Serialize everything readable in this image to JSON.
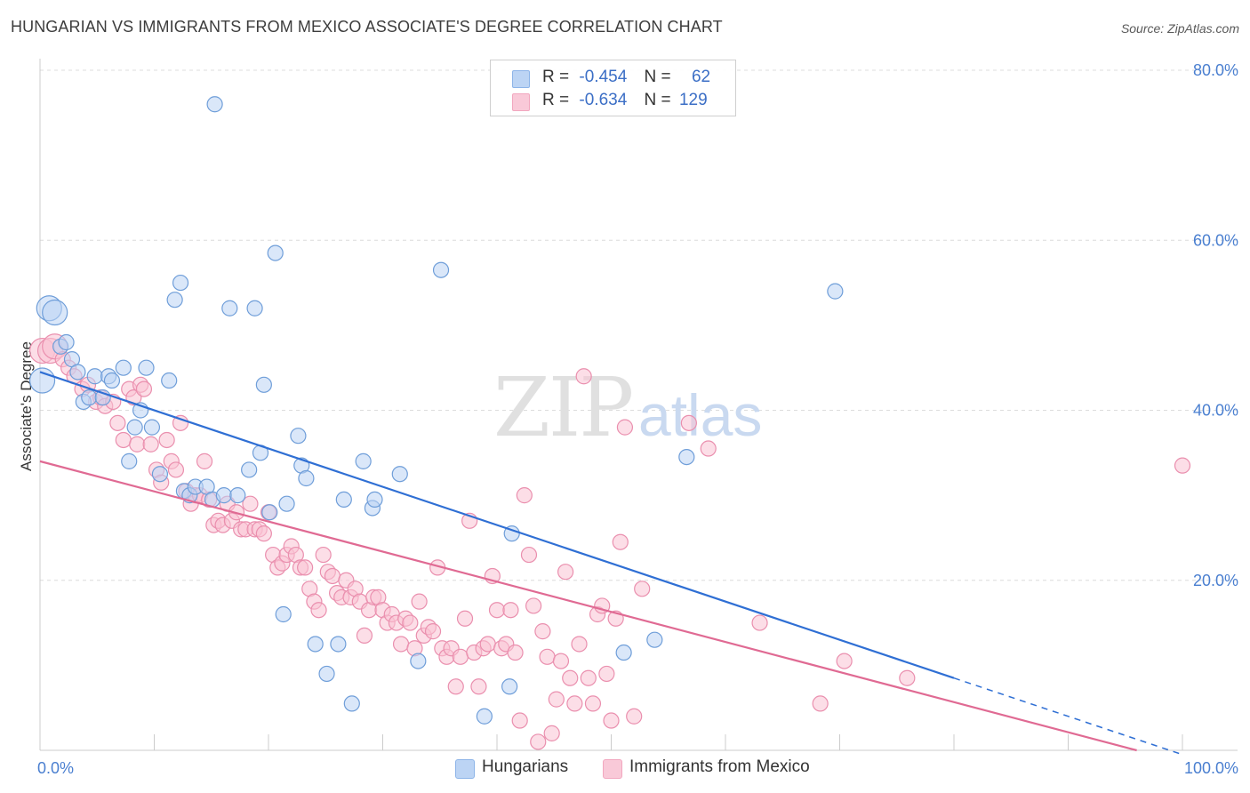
{
  "header": {
    "title": "HUNGARIAN VS IMMIGRANTS FROM MEXICO ASSOCIATE'S DEGREE CORRELATION CHART",
    "source": "Source: ZipAtlas.com"
  },
  "watermark": {
    "zip": "ZIP",
    "atlas": "atlas"
  },
  "legend": {
    "rows": [
      {
        "r_label": "R =",
        "r_value": "-0.454",
        "n_label": "N =",
        "n_value": "62"
      },
      {
        "r_label": "R =",
        "r_value": "-0.634",
        "n_label": "N =",
        "n_value": "129"
      }
    ]
  },
  "bottom_legend": {
    "hungarians": "Hungarians",
    "mexico": "Immigrants from Mexico"
  },
  "chart_data": {
    "type": "scatter",
    "title": "HUNGARIAN VS IMMIGRANTS FROM MEXICO ASSOCIATE'S DEGREE CORRELATION CHART",
    "ylabel": "Associate's Degree",
    "xlabel": "",
    "xlim": [
      0,
      100
    ],
    "ylim": [
      0,
      80
    ],
    "x_tick_labels": [
      "0.0%",
      "100.0%"
    ],
    "y_ticks": [
      20,
      40,
      60,
      80
    ],
    "y_tick_labels": [
      "20.0%",
      "40.0%",
      "60.0%",
      "80.0%"
    ],
    "grid": "horizontal dashed",
    "legend_position": "top-center",
    "colors": {
      "hungarians": "#8db4e8",
      "mexico": "#f2a7bf",
      "hungarians_line": "#2f6fd4",
      "mexico_line": "#e06a93"
    },
    "series": [
      {
        "name": "Hungarians",
        "r": -0.454,
        "n": 62,
        "trend": {
          "x0": 0,
          "y0": 44.5,
          "x1": 80,
          "y1": 8.5,
          "dashed_to_x": 100
        },
        "points": [
          [
            0.2,
            43.5
          ],
          [
            0.8,
            52
          ],
          [
            1.3,
            51.5
          ],
          [
            1.8,
            47.5
          ],
          [
            2.3,
            48
          ],
          [
            2.8,
            46
          ],
          [
            3.3,
            44.5
          ],
          [
            3.8,
            41
          ],
          [
            4.3,
            41.5
          ],
          [
            4.8,
            44
          ],
          [
            5.5,
            41.5
          ],
          [
            6,
            44
          ],
          [
            6.3,
            43.5
          ],
          [
            7.3,
            45
          ],
          [
            7.8,
            34
          ],
          [
            8.3,
            38
          ],
          [
            8.8,
            40
          ],
          [
            9.3,
            45
          ],
          [
            9.8,
            38
          ],
          [
            10.5,
            32.5
          ],
          [
            11.3,
            43.5
          ],
          [
            11.8,
            53
          ],
          [
            12.3,
            55
          ],
          [
            12.6,
            30.5
          ],
          [
            13.1,
            30
          ],
          [
            13.6,
            31
          ],
          [
            14.6,
            31
          ],
          [
            15.1,
            29.5
          ],
          [
            15.3,
            76
          ],
          [
            16.1,
            30
          ],
          [
            16.6,
            52
          ],
          [
            17.3,
            30
          ],
          [
            18.3,
            33
          ],
          [
            18.8,
            52
          ],
          [
            19.3,
            35
          ],
          [
            19.6,
            43
          ],
          [
            20.1,
            28
          ],
          [
            20.6,
            58.5
          ],
          [
            21.3,
            16
          ],
          [
            21.6,
            29
          ],
          [
            22.6,
            37
          ],
          [
            22.9,
            33.5
          ],
          [
            23.3,
            32
          ],
          [
            24.1,
            12.5
          ],
          [
            25.1,
            9
          ],
          [
            26.1,
            12.5
          ],
          [
            26.6,
            29.5
          ],
          [
            27.3,
            5.5
          ],
          [
            28.3,
            34
          ],
          [
            29.1,
            28.5
          ],
          [
            29.3,
            29.5
          ],
          [
            31.5,
            32.5
          ],
          [
            33.1,
            10.5
          ],
          [
            35.1,
            56.5
          ],
          [
            38.9,
            4
          ],
          [
            41.1,
            7.5
          ],
          [
            41.3,
            25.5
          ],
          [
            51.1,
            11.5
          ],
          [
            53.8,
            13
          ],
          [
            56.6,
            34.5
          ],
          [
            69.6,
            54
          ]
        ]
      },
      {
        "name": "Immigrants from Mexico",
        "r": -0.634,
        "n": 129,
        "trend": {
          "x0": 0,
          "y0": 34,
          "x1": 96,
          "y1": 0
        },
        "points": [
          [
            0.2,
            47
          ],
          [
            0.9,
            47
          ],
          [
            1.3,
            47.5
          ],
          [
            2,
            46
          ],
          [
            2.5,
            45
          ],
          [
            3,
            44
          ],
          [
            3.7,
            42.5
          ],
          [
            4.2,
            43
          ],
          [
            4.9,
            41
          ],
          [
            5.3,
            41.5
          ],
          [
            5.7,
            40.5
          ],
          [
            6.4,
            41
          ],
          [
            6.8,
            38.5
          ],
          [
            7.3,
            36.5
          ],
          [
            7.8,
            42.5
          ],
          [
            8.2,
            41.5
          ],
          [
            8.5,
            36
          ],
          [
            8.8,
            43
          ],
          [
            9.1,
            42.5
          ],
          [
            9.7,
            36
          ],
          [
            10.2,
            33
          ],
          [
            10.6,
            31.5
          ],
          [
            11.1,
            36.5
          ],
          [
            11.5,
            34
          ],
          [
            11.9,
            33
          ],
          [
            12.3,
            38.5
          ],
          [
            12.8,
            30.5
          ],
          [
            13.2,
            29
          ],
          [
            13.6,
            30
          ],
          [
            14,
            30
          ],
          [
            14.4,
            34
          ],
          [
            14.8,
            29.5
          ],
          [
            15.2,
            26.5
          ],
          [
            15.6,
            27
          ],
          [
            16,
            26.5
          ],
          [
            16.4,
            29
          ],
          [
            16.8,
            27
          ],
          [
            17.2,
            28
          ],
          [
            17.6,
            26
          ],
          [
            18,
            26
          ],
          [
            18.4,
            29
          ],
          [
            18.8,
            26
          ],
          [
            19.2,
            26
          ],
          [
            19.6,
            25.5
          ],
          [
            20,
            28
          ],
          [
            20.4,
            23
          ],
          [
            20.8,
            21.5
          ],
          [
            21.2,
            22
          ],
          [
            21.6,
            23
          ],
          [
            22,
            24
          ],
          [
            22.4,
            23
          ],
          [
            22.8,
            21.5
          ],
          [
            23.2,
            21.5
          ],
          [
            23.6,
            19
          ],
          [
            24,
            17.5
          ],
          [
            24.4,
            16.5
          ],
          [
            24.8,
            23
          ],
          [
            25.2,
            21
          ],
          [
            25.6,
            20.5
          ],
          [
            26,
            18.5
          ],
          [
            26.4,
            18
          ],
          [
            26.8,
            20
          ],
          [
            27.2,
            18
          ],
          [
            27.6,
            19
          ],
          [
            28,
            17.5
          ],
          [
            28.4,
            13.5
          ],
          [
            28.8,
            16.5
          ],
          [
            29.2,
            18
          ],
          [
            29.6,
            18
          ],
          [
            30,
            16.5
          ],
          [
            30.4,
            15
          ],
          [
            30.8,
            16
          ],
          [
            31.2,
            15
          ],
          [
            31.6,
            12.5
          ],
          [
            32,
            15.5
          ],
          [
            32.4,
            15
          ],
          [
            32.8,
            12
          ],
          [
            33.2,
            17.5
          ],
          [
            33.6,
            13.5
          ],
          [
            34,
            14.5
          ],
          [
            34.4,
            14
          ],
          [
            34.8,
            21.5
          ],
          [
            35.2,
            12
          ],
          [
            35.6,
            11
          ],
          [
            36,
            12
          ],
          [
            36.4,
            7.5
          ],
          [
            36.8,
            11
          ],
          [
            37.2,
            15.5
          ],
          [
            37.6,
            27
          ],
          [
            38,
            11.5
          ],
          [
            38.4,
            7.5
          ],
          [
            38.8,
            12
          ],
          [
            39.2,
            12.5
          ],
          [
            39.6,
            20.5
          ],
          [
            40,
            16.5
          ],
          [
            40.4,
            12
          ],
          [
            40.8,
            12.5
          ],
          [
            41.2,
            16.5
          ],
          [
            41.6,
            11.5
          ],
          [
            42,
            3.5
          ],
          [
            42.4,
            30
          ],
          [
            42.8,
            23
          ],
          [
            43.2,
            17
          ],
          [
            43.6,
            1
          ],
          [
            44,
            14
          ],
          [
            44.4,
            11
          ],
          [
            44.8,
            2
          ],
          [
            45.2,
            6
          ],
          [
            45.6,
            10.5
          ],
          [
            46,
            21
          ],
          [
            46.4,
            8.5
          ],
          [
            46.8,
            5.5
          ],
          [
            47.2,
            12.5
          ],
          [
            47.6,
            44
          ],
          [
            48,
            8.5
          ],
          [
            48.4,
            5.5
          ],
          [
            48.8,
            16
          ],
          [
            49.2,
            17
          ],
          [
            49.6,
            9
          ],
          [
            50,
            3.5
          ],
          [
            50.4,
            15.5
          ],
          [
            50.8,
            24.5
          ],
          [
            51.2,
            38
          ],
          [
            52,
            4
          ],
          [
            52.7,
            19
          ],
          [
            56.8,
            38.5
          ],
          [
            58.5,
            35.5
          ],
          [
            63,
            15
          ],
          [
            68.3,
            5.5
          ],
          [
            70.4,
            10.5
          ],
          [
            75.9,
            8.5
          ],
          [
            100,
            33.5
          ]
        ]
      }
    ]
  }
}
